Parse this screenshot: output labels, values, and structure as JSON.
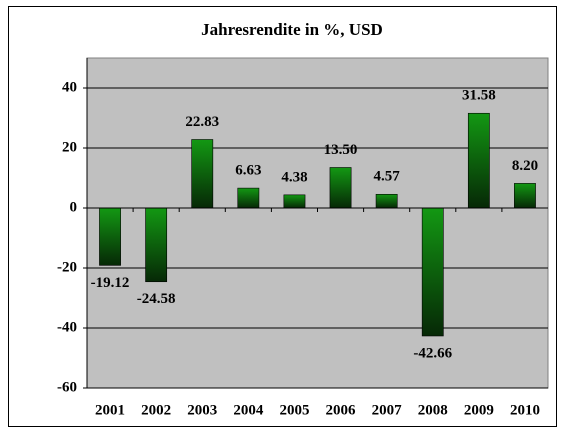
{
  "chart_data": {
    "type": "bar",
    "title": "Jahresrendite in %, USD",
    "categories": [
      "2001",
      "2002",
      "2003",
      "2004",
      "2005",
      "2006",
      "2007",
      "2008",
      "2009",
      "2010"
    ],
    "values": [
      -19.12,
      -24.58,
      22.83,
      6.63,
      4.38,
      13.5,
      4.57,
      -42.66,
      31.58,
      8.2
    ],
    "value_labels": [
      "-19.12",
      "-24.58",
      "22.83",
      "6.63",
      "4.38",
      "13.50",
      "4.57",
      "-42.66",
      "31.58",
      "8.20"
    ],
    "color": "#139813",
    "ylim": [
      -60,
      50
    ],
    "yticks": [
      -60,
      -40,
      -20,
      0,
      20,
      40
    ],
    "grid": true
  }
}
